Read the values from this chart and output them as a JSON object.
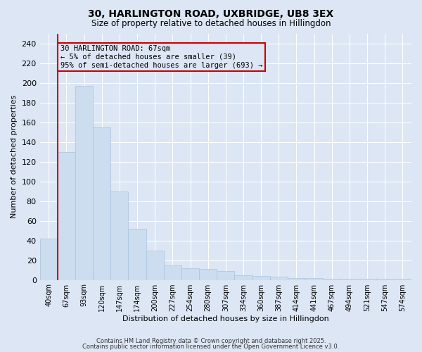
{
  "title_line1": "30, HARLINGTON ROAD, UXBRIDGE, UB8 3EX",
  "title_line2": "Size of property relative to detached houses in Hillingdon",
  "xlabel": "Distribution of detached houses by size in Hillingdon",
  "ylabel": "Number of detached properties",
  "categories": [
    "40sqm",
    "67sqm",
    "93sqm",
    "120sqm",
    "147sqm",
    "174sqm",
    "200sqm",
    "227sqm",
    "254sqm",
    "280sqm",
    "307sqm",
    "334sqm",
    "360sqm",
    "387sqm",
    "414sqm",
    "441sqm",
    "467sqm",
    "494sqm",
    "521sqm",
    "547sqm",
    "574sqm"
  ],
  "values": [
    42,
    130,
    197,
    155,
    90,
    52,
    30,
    15,
    12,
    11,
    9,
    5,
    4,
    3,
    2,
    2,
    1,
    1,
    1,
    1,
    1
  ],
  "bar_color": "#ccddf0",
  "bar_edge_color": "#aac4df",
  "highlight_index": 1,
  "highlight_edge_color": "#cc0000",
  "vline_color": "#cc0000",
  "annotation_text": "30 HARLINGTON ROAD: 67sqm\n← 5% of detached houses are smaller (39)\n95% of semi-detached houses are larger (693) →",
  "annotation_box_edge": "#cc0000",
  "ylim": [
    0,
    250
  ],
  "yticks": [
    0,
    20,
    40,
    60,
    80,
    100,
    120,
    140,
    160,
    180,
    200,
    220,
    240
  ],
  "background_color": "#dce6f5",
  "grid_color": "#ffffff",
  "footer_line1": "Contains HM Land Registry data © Crown copyright and database right 2025.",
  "footer_line2": "Contains public sector information licensed under the Open Government Licence v3.0."
}
